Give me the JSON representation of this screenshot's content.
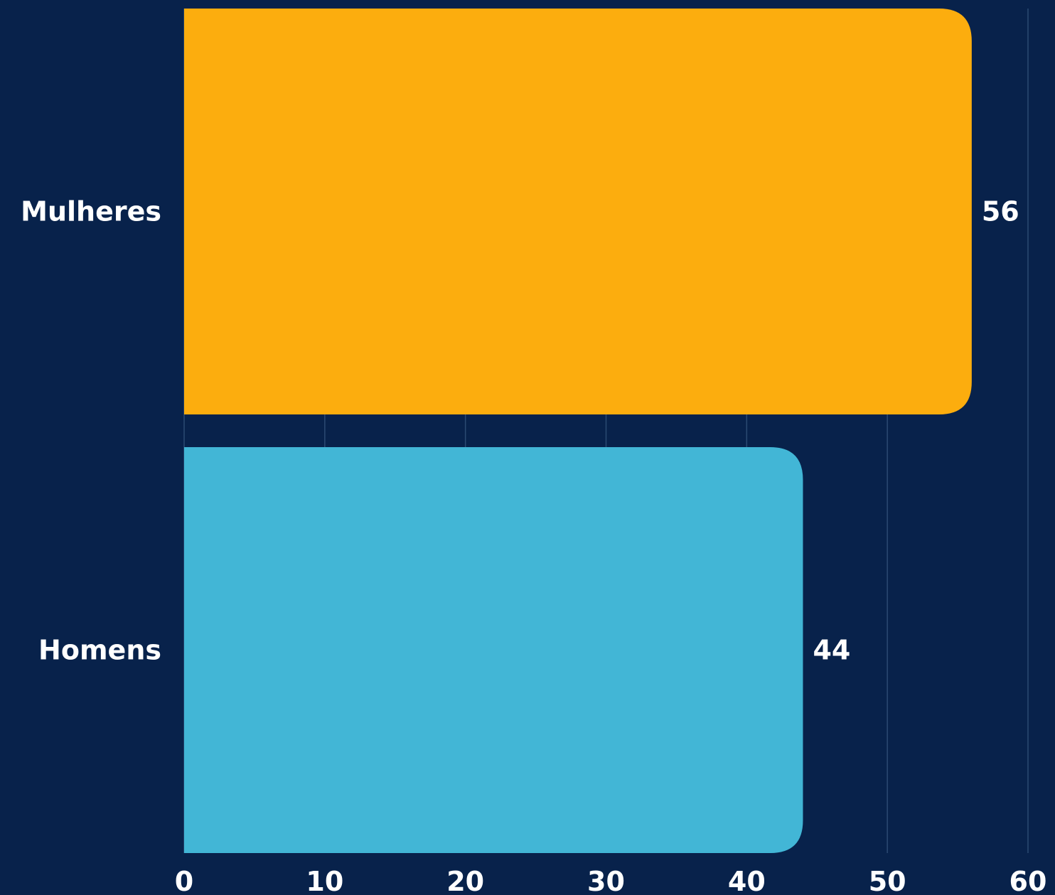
{
  "chart_data": {
    "type": "bar",
    "orientation": "horizontal",
    "title": "",
    "xlabel": "",
    "ylabel": "",
    "categories": [
      "Mulheres",
      "Homens"
    ],
    "values": [
      56,
      44
    ],
    "value_labels": [
      "56",
      "44"
    ],
    "xlim": [
      0,
      60
    ],
    "x_ticks": [
      0,
      10,
      20,
      30,
      40,
      50,
      60
    ],
    "x_tick_labels": [
      "0",
      "10",
      "20",
      "30",
      "40",
      "50",
      "60"
    ],
    "grid": "vertical",
    "legend": "none",
    "colors": {
      "background": "#08224b",
      "bars": [
        "#fcad0e",
        "#42b6d6"
      ],
      "text": "#ffffff",
      "grid": "#2b4a72"
    }
  }
}
